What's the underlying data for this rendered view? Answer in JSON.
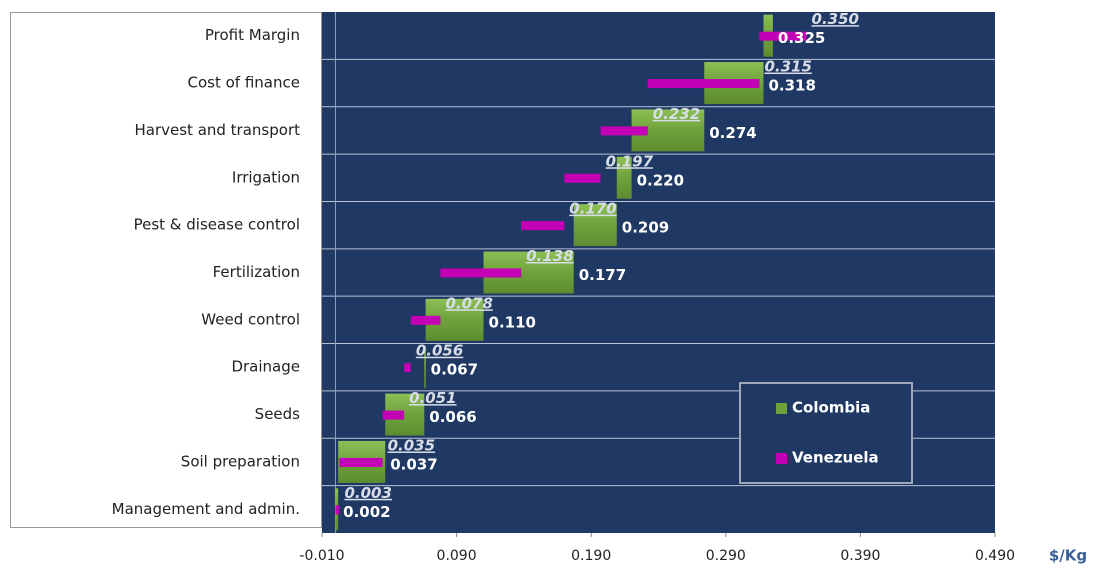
{
  "chart_data": {
    "type": "waterfall",
    "categories": [
      "Management and admin.",
      "Soil preparation",
      "Seeds",
      "Drainage",
      "Weed control",
      "Fertilization",
      "Pest & disease control",
      "Irrigation",
      "Harvest and transport",
      "Cost of finance",
      "Profit Margin"
    ],
    "series": [
      {
        "name": "Colombia",
        "color": "#6fa23c",
        "values": [
          0.002,
          0.037,
          0.066,
          0.067,
          0.11,
          0.177,
          0.209,
          0.22,
          0.274,
          0.318,
          0.325
        ],
        "value_labels": [
          "0.002",
          "0.037",
          "0.066",
          "0.067",
          "0.110",
          "0.177",
          "0.209",
          "0.220",
          "0.274",
          "0.318",
          "0.325"
        ]
      },
      {
        "name": "Venezuela",
        "color": "#c400b4",
        "values": [
          0.003,
          0.035,
          0.051,
          0.056,
          0.078,
          0.138,
          0.17,
          0.197,
          0.232,
          0.315,
          0.35
        ],
        "value_labels": [
          "0.003",
          "0.035",
          "0.051",
          "0.056",
          "0.078",
          "0.138",
          "0.170",
          "0.197",
          "0.232",
          "0.315",
          "0.350"
        ]
      }
    ],
    "x_label": "$/Kg",
    "xlim": [
      -0.01,
      0.49
    ],
    "xticks": [
      {
        "value": -0.01,
        "label": "-0.010"
      },
      {
        "value": 0.09,
        "label": "0.090"
      },
      {
        "value": 0.19,
        "label": "0.190"
      },
      {
        "value": 0.29,
        "label": "0.290"
      },
      {
        "value": 0.39,
        "label": "0.390"
      },
      {
        "value": 0.49,
        "label": "0.490"
      }
    ],
    "legend": "lower right"
  }
}
